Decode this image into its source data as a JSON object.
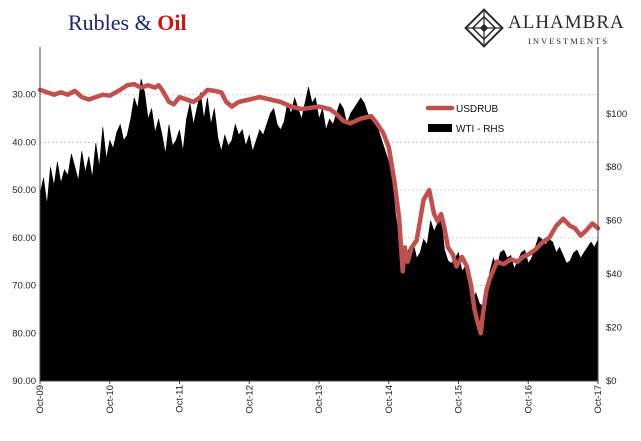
{
  "header": {
    "title_part1": "Rubles &",
    "title_part2": "Oil",
    "brand_name": "ALHAMBRA",
    "brand_sub": "INVESTMENTS"
  },
  "colors": {
    "usdrub": "#c0504d",
    "wti": "#000000",
    "title_blue": "#1a237e",
    "title_red": "#d01414",
    "grid": "#bdbdbd"
  },
  "chart_data": {
    "type": "line",
    "title": "Rubles & Oil",
    "grid": true,
    "legend_placement": "top-right",
    "x_tick_labels": [
      "Oct-09",
      "Oct-10",
      "Oct-11",
      "Oct-12",
      "Oct-13",
      "Oct-14",
      "Oct-15",
      "Oct-16",
      "Oct-17"
    ],
    "x_range": [
      2009.75,
      2017.75
    ],
    "left_axis": {
      "series": "USDRUB",
      "inverted": true,
      "range": [
        20,
        90
      ],
      "ticks": [
        "30.00",
        "40.00",
        "50.00",
        "60.00",
        "70.00",
        "80.00",
        "90.00"
      ]
    },
    "right_axis": {
      "series": "WTI - RHS",
      "range": [
        0,
        125
      ],
      "ticks": [
        "$0",
        "$20",
        "$40",
        "$60",
        "$80",
        "$100"
      ]
    },
    "series": [
      {
        "name": "USDRUB",
        "style": "line",
        "axis": "left",
        "x": [
          2009.75,
          2009.85,
          2009.95,
          2010.05,
          2010.15,
          2010.25,
          2010.35,
          2010.45,
          2010.55,
          2010.65,
          2010.75,
          2010.9,
          2011.0,
          2011.1,
          2011.2,
          2011.3,
          2011.4,
          2011.45,
          2011.5,
          2011.6,
          2011.67,
          2011.75,
          2011.85,
          2011.95,
          2012.05,
          2012.15,
          2012.25,
          2012.35,
          2012.42,
          2012.5,
          2012.6,
          2012.75,
          2012.9,
          2013.05,
          2013.2,
          2013.35,
          2013.5,
          2013.6,
          2013.75,
          2013.9,
          2014.0,
          2014.1,
          2014.2,
          2014.35,
          2014.5,
          2014.58,
          2014.67,
          2014.75,
          2014.83,
          2014.9,
          2014.95,
          2014.98,
          2015.02,
          2015.08,
          2015.15,
          2015.25,
          2015.33,
          2015.4,
          2015.45,
          2015.5,
          2015.55,
          2015.6,
          2015.67,
          2015.72,
          2015.8,
          2015.87,
          2015.93,
          2015.98,
          2016.03,
          2016.07,
          2016.1,
          2016.15,
          2016.2,
          2016.3,
          2016.4,
          2016.5,
          2016.6,
          2016.67,
          2016.75,
          2016.85,
          2016.95,
          2017.05,
          2017.15,
          2017.25,
          2017.35,
          2017.42,
          2017.5,
          2017.58,
          2017.67,
          2017.75
        ],
        "values": [
          29.0,
          29.5,
          30.0,
          29.5,
          30.0,
          29.2,
          30.5,
          31.0,
          30.5,
          30.0,
          30.2,
          29.0,
          28.0,
          27.8,
          28.5,
          28.0,
          28.5,
          28.0,
          29.0,
          31.5,
          32.0,
          30.5,
          31.0,
          31.5,
          30.5,
          29.0,
          29.2,
          29.5,
          31.5,
          32.5,
          31.5,
          31.0,
          30.5,
          31.0,
          31.5,
          32.5,
          33.0,
          32.8,
          32.5,
          33.0,
          34.0,
          35.5,
          36.0,
          35.0,
          34.5,
          36.0,
          38.0,
          41.0,
          48.0,
          56.0,
          67.0,
          62.0,
          65.0,
          62.0,
          60.5,
          52.0,
          50.0,
          55.0,
          56.5,
          55.0,
          58.0,
          62.0,
          63.5,
          66.0,
          64.0,
          66.0,
          70.0,
          75.0,
          78.0,
          80.0,
          76.0,
          71.0,
          68.5,
          65.0,
          65.5,
          64.5,
          65.0,
          64.0,
          63.5,
          62.5,
          61.0,
          60.0,
          57.5,
          56.0,
          57.5,
          58.0,
          59.5,
          58.5,
          57.0,
          58.0
        ]
      },
      {
        "name": "WTI - RHS",
        "style": "area",
        "axis": "right",
        "x": [
          2009.75,
          2009.8,
          2009.85,
          2009.9,
          2009.95,
          2010.0,
          2010.05,
          2010.1,
          2010.15,
          2010.2,
          2010.25,
          2010.3,
          2010.35,
          2010.4,
          2010.45,
          2010.5,
          2010.55,
          2010.6,
          2010.65,
          2010.7,
          2010.75,
          2010.8,
          2010.85,
          2010.9,
          2010.95,
          2011.0,
          2011.05,
          2011.1,
          2011.15,
          2011.2,
          2011.25,
          2011.3,
          2011.35,
          2011.4,
          2011.45,
          2011.5,
          2011.55,
          2011.6,
          2011.65,
          2011.7,
          2011.75,
          2011.8,
          2011.85,
          2011.9,
          2011.95,
          2012.0,
          2012.05,
          2012.1,
          2012.15,
          2012.2,
          2012.25,
          2012.3,
          2012.35,
          2012.4,
          2012.45,
          2012.5,
          2012.55,
          2012.6,
          2012.65,
          2012.7,
          2012.75,
          2012.8,
          2012.85,
          2012.9,
          2012.95,
          2013.0,
          2013.05,
          2013.1,
          2013.15,
          2013.2,
          2013.25,
          2013.3,
          2013.35,
          2013.4,
          2013.45,
          2013.5,
          2013.55,
          2013.6,
          2013.65,
          2013.7,
          2013.75,
          2013.8,
          2013.85,
          2013.9,
          2013.95,
          2014.0,
          2014.05,
          2014.1,
          2014.15,
          2014.2,
          2014.25,
          2014.3,
          2014.35,
          2014.4,
          2014.45,
          2014.5,
          2014.55,
          2014.6,
          2014.65,
          2014.7,
          2014.75,
          2014.8,
          2014.85,
          2014.9,
          2014.95,
          2015.0,
          2015.05,
          2015.1,
          2015.15,
          2015.2,
          2015.25,
          2015.3,
          2015.35,
          2015.4,
          2015.45,
          2015.5,
          2015.55,
          2015.6,
          2015.65,
          2015.7,
          2015.75,
          2015.8,
          2015.85,
          2015.9,
          2015.95,
          2016.0,
          2016.05,
          2016.1,
          2016.15,
          2016.2,
          2016.25,
          2016.3,
          2016.35,
          2016.4,
          2016.45,
          2016.5,
          2016.55,
          2016.6,
          2016.65,
          2016.7,
          2016.75,
          2016.8,
          2016.85,
          2016.9,
          2016.95,
          2017.0,
          2017.05,
          2017.1,
          2017.15,
          2017.2,
          2017.25,
          2017.3,
          2017.35,
          2017.4,
          2017.45,
          2017.5,
          2017.55,
          2017.6,
          2017.65,
          2017.7,
          2017.75
        ],
        "values": [
          70,
          76,
          66,
          80,
          73,
          82,
          74,
          79,
          77,
          85,
          80,
          75,
          86,
          78,
          84,
          76,
          89,
          80,
          95,
          83,
          90,
          87,
          93,
          96,
          90,
          92,
          98,
          106,
          102,
          113,
          108,
          98,
          102,
          93,
          98,
          92,
          85,
          96,
          88,
          90,
          94,
          86,
          98,
          104,
          96,
          102,
          108,
          98,
          106,
          96,
          102,
          91,
          86,
          92,
          88,
          90,
          96,
          92,
          94,
          88,
          92,
          86,
          90,
          94,
          92,
          96,
          100,
          102,
          96,
          94,
          97,
          104,
          100,
          106,
          102,
          98,
          104,
          110,
          104,
          106,
          98,
          102,
          94,
          98,
          96,
          100,
          104,
          102,
          96,
          100,
          102,
          104,
          106,
          104,
          100,
          98,
          96,
          94,
          90,
          86,
          82,
          76,
          62,
          54,
          48,
          47,
          50,
          52,
          46,
          48,
          53,
          51,
          60,
          56,
          59,
          62,
          49,
          45,
          44,
          46,
          48,
          41,
          43,
          37,
          30,
          33,
          29,
          28,
          32,
          41,
          46,
          42,
          48,
          49,
          46,
          47,
          42,
          45,
          48,
          49,
          44,
          46,
          50,
          54,
          53,
          51,
          53,
          52,
          48,
          50,
          47,
          44,
          45,
          48,
          49,
          46,
          48,
          50,
          52,
          50,
          53
        ]
      }
    ]
  }
}
